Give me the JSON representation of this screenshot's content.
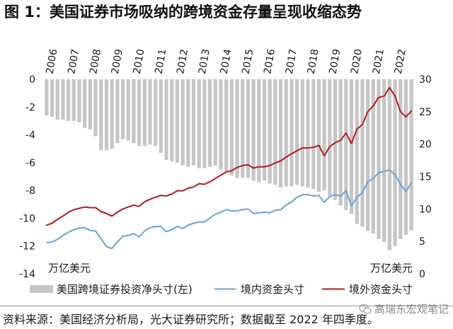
{
  "chart_data": {
    "type": "bar",
    "title": "图 1：美国证券市场吸纳的跨境资金存量呈现收缩态势",
    "categories": [
      "2006",
      "2007",
      "2008",
      "2009",
      "2010",
      "2011",
      "2012",
      "2013",
      "2014",
      "2015",
      "2016",
      "2017",
      "2018",
      "2019",
      "2020",
      "2021",
      "2022"
    ],
    "y_left": {
      "range": [
        -14,
        0
      ],
      "ticks": [
        0,
        -2,
        -4,
        -6,
        -8,
        -10,
        -12,
        -14
      ],
      "unit": "万亿美元"
    },
    "y_right": {
      "range": [
        0,
        30
      ],
      "ticks": [
        30,
        25,
        20,
        15,
        10,
        5,
        0
      ],
      "unit": "万亿美元"
    },
    "grid": false,
    "legend": "bottom",
    "series": [
      {
        "name": "美国跨境证券投资净头寸(左)",
        "type": "bar",
        "axis": "left",
        "color": "#c6c6c6",
        "values": [
          [
            -2.6,
            -2.7,
            -2.9,
            -2.9
          ],
          [
            -3.0,
            -3.0,
            -3.1,
            -3.5
          ],
          [
            -3.6,
            -4.1,
            -5.1,
            -5.1
          ],
          [
            -5.0,
            -4.6,
            -4.3,
            -4.4
          ],
          [
            -4.6,
            -4.8,
            -4.8,
            -4.7
          ],
          [
            -4.8,
            -5.3,
            -5.8,
            -5.9
          ],
          [
            -6.0,
            -6.2,
            -6.3,
            -6.2
          ],
          [
            -6.4,
            -6.4,
            -6.3,
            -6.2
          ],
          [
            -6.5,
            -6.7,
            -6.9,
            -7.1
          ],
          [
            -7.1,
            -7.1,
            -7.3,
            -7.4
          ],
          [
            -7.3,
            -7.5,
            -7.6,
            -7.8
          ],
          [
            -7.7,
            -7.7,
            -7.6,
            -7.7
          ],
          [
            -7.8,
            -7.9,
            -8.1,
            -8.0
          ],
          [
            -8.4,
            -8.7,
            -9.1,
            -9.4
          ],
          [
            -9.7,
            -10.4,
            -10.6,
            -10.9
          ],
          [
            -11.1,
            -11.5,
            -11.7,
            -12.3
          ],
          [
            -12.0,
            -11.5,
            -11.2,
            -10.9
          ]
        ]
      },
      {
        "name": "境内资金头寸",
        "type": "line",
        "axis": "right",
        "color": "#6aa2d6",
        "values": [
          [
            4.8,
            4.9,
            5.3,
            5.9
          ],
          [
            6.4,
            6.8,
            7.1,
            7.1
          ],
          [
            6.7,
            6.6,
            5.4,
            4.2
          ],
          [
            3.9,
            4.9,
            5.8,
            5.9
          ],
          [
            6.2,
            5.7,
            6.6,
            7.1
          ],
          [
            7.3,
            7.3,
            6.5,
            6.8
          ],
          [
            7.3,
            7.0,
            7.5,
            7.8
          ],
          [
            8.0,
            8.0,
            8.6,
            9.2
          ],
          [
            9.5,
            9.9,
            9.7,
            9.7
          ],
          [
            9.9,
            10.0,
            9.3,
            9.4
          ],
          [
            9.5,
            9.4,
            9.8,
            9.9
          ],
          [
            10.6,
            11.1,
            11.8,
            12.2
          ],
          [
            12.2,
            12.0,
            12.1,
            11.0
          ],
          [
            11.9,
            12.2,
            12.0,
            12.8
          ],
          [
            10.5,
            11.8,
            12.5,
            14.2
          ],
          [
            14.7,
            15.6,
            15.8,
            16.0
          ],
          [
            15.3,
            13.8,
            12.7,
            14.0
          ]
        ]
      },
      {
        "name": "境外资金头寸",
        "type": "line",
        "axis": "right",
        "color": "#b31b1b",
        "values": [
          [
            7.5,
            7.8,
            8.4,
            8.9
          ],
          [
            9.5,
            9.9,
            10.1,
            10.3
          ],
          [
            10.2,
            10.2,
            9.6,
            9.3
          ],
          [
            8.9,
            9.5,
            10.0,
            10.3
          ],
          [
            10.6,
            10.4,
            11.1,
            11.5
          ],
          [
            11.8,
            12.1,
            12.0,
            12.3
          ],
          [
            12.8,
            12.8,
            13.2,
            13.4
          ],
          [
            13.9,
            13.8,
            14.2,
            14.7
          ],
          [
            15.2,
            15.7,
            15.9,
            16.4
          ],
          [
            16.7,
            16.8,
            16.3,
            16.5
          ],
          [
            16.5,
            16.7,
            17.1,
            17.4
          ],
          [
            18.0,
            18.5,
            19.0,
            19.4
          ],
          [
            19.4,
            19.5,
            19.8,
            18.2
          ],
          [
            19.6,
            20.2,
            20.6,
            21.7
          ],
          [
            20.1,
            22.3,
            23.0,
            25.0
          ],
          [
            25.9,
            27.2,
            27.4,
            28.7
          ],
          [
            27.4,
            25.0,
            24.2,
            25.1
          ]
        ]
      }
    ]
  },
  "source": "资料来源：美国经济分析局，光大证券研究所；数据截至 2022 年四季度。",
  "watermark": {
    "text": "高瑞东宏观笔记",
    "icon": "wechat-icon",
    "color": "#8a8a8a"
  }
}
